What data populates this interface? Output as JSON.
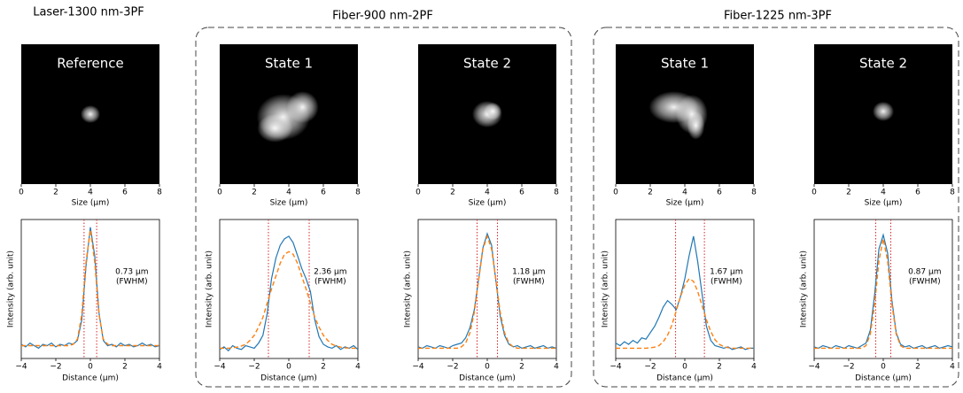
{
  "figure_titles": [
    "Laser-1300 nm-3PF",
    "Fiber-900 nm-2PF",
    "Fiber-1225 nm-3PF"
  ],
  "chart_data": [
    {
      "type": "image",
      "label": "Reference",
      "x_label": "Size (μm)",
      "xlim": [
        0,
        8
      ],
      "xticks": [
        0,
        2,
        4,
        6,
        8
      ]
    },
    {
      "type": "image",
      "label": "State 1",
      "x_label": "Size (μm)",
      "xlim": [
        0,
        8
      ],
      "xticks": [
        0,
        2,
        4,
        6,
        8
      ]
    },
    {
      "type": "image",
      "label": "State 2",
      "x_label": "Size (μm)",
      "xlim": [
        0,
        8
      ],
      "xticks": [
        0,
        2,
        4,
        6,
        8
      ]
    },
    {
      "type": "image",
      "label": "State 1",
      "x_label": "Size (μm)",
      "xlim": [
        0,
        8
      ],
      "xticks": [
        0,
        2,
        4,
        6,
        8
      ]
    },
    {
      "type": "image",
      "label": "State 2",
      "x_label": "Size (μm)",
      "xlim": [
        0,
        8
      ],
      "xticks": [
        0,
        2,
        4,
        6,
        8
      ]
    },
    {
      "type": "line",
      "x_label": "Distance (μm)",
      "y_label": "Intensity (arb. unit)",
      "annotation": [
        "0.73 μm",
        "(FWHM)"
      ],
      "xlim": [
        -4,
        4
      ],
      "xticks": [
        {
          "value": -4,
          "label": "−4"
        },
        {
          "value": -2,
          "label": "−2"
        },
        0,
        2,
        4
      ],
      "ylim": [
        0,
        1.08
      ],
      "x": [
        -4,
        -3.75,
        -3.5,
        -3.25,
        -3,
        -2.75,
        -2.5,
        -2.25,
        -2,
        -1.75,
        -1.5,
        -1.25,
        -1,
        -0.75,
        -0.5,
        -0.25,
        0,
        0.25,
        0.5,
        0.75,
        1,
        1.25,
        1.5,
        1.75,
        2,
        2.25,
        2.5,
        2.75,
        3,
        3.25,
        3.5,
        3.75,
        4
      ],
      "series": [
        {
          "color": "#1f77b4",
          "style": "solid",
          "values": [
            0.11,
            0.09,
            0.12,
            0.1,
            0.08,
            0.11,
            0.1,
            0.12,
            0.09,
            0.11,
            0.1,
            0.12,
            0.11,
            0.14,
            0.3,
            0.72,
            1.02,
            0.8,
            0.35,
            0.14,
            0.1,
            0.11,
            0.09,
            0.12,
            0.1,
            0.11,
            0.09,
            0.1,
            0.12,
            0.1,
            0.11,
            0.09,
            0.1
          ]
        },
        {
          "color": "#ff7f0e",
          "style": "dashed",
          "values": [
            0.1,
            0.1,
            0.1,
            0.1,
            0.1,
            0.1,
            0.1,
            0.1,
            0.1,
            0.1,
            0.1,
            0.1,
            0.11,
            0.15,
            0.34,
            0.75,
            1.0,
            0.75,
            0.34,
            0.15,
            0.11,
            0.1,
            0.1,
            0.1,
            0.1,
            0.1,
            0.1,
            0.1,
            0.1,
            0.1,
            0.1,
            0.1,
            0.1
          ]
        }
      ],
      "vlines": [
        -0.365,
        0.365
      ],
      "vline_color": "#d62728"
    },
    {
      "type": "line",
      "x_label": "Distance (μm)",
      "y_label": "Intensity (arb. unit)",
      "annotation": [
        "2.36 μm",
        "(FWHM)"
      ],
      "xlim": [
        -4,
        4
      ],
      "xticks": [
        {
          "value": -4,
          "label": "−4"
        },
        {
          "value": -2,
          "label": "−2"
        },
        0,
        2,
        4
      ],
      "ylim": [
        0,
        1.08
      ],
      "x": [
        -4,
        -3.75,
        -3.5,
        -3.25,
        -3,
        -2.75,
        -2.5,
        -2.25,
        -2,
        -1.75,
        -1.5,
        -1.25,
        -1,
        -0.75,
        -0.5,
        -0.25,
        0,
        0.25,
        0.5,
        0.75,
        1,
        1.25,
        1.5,
        1.75,
        2,
        2.25,
        2.5,
        2.75,
        3,
        3.25,
        3.5,
        3.75,
        4
      ],
      "series": [
        {
          "color": "#1f77b4",
          "style": "solid",
          "values": [
            0.07,
            0.09,
            0.06,
            0.1,
            0.08,
            0.07,
            0.1,
            0.09,
            0.08,
            0.12,
            0.18,
            0.35,
            0.62,
            0.78,
            0.88,
            0.93,
            0.95,
            0.9,
            0.8,
            0.7,
            0.62,
            0.52,
            0.3,
            0.17,
            0.11,
            0.09,
            0.08,
            0.1,
            0.07,
            0.09,
            0.08,
            0.1,
            0.07
          ]
        },
        {
          "color": "#ff7f0e",
          "style": "dashed",
          "values": [
            0.08,
            0.08,
            0.08,
            0.083,
            0.088,
            0.097,
            0.11,
            0.14,
            0.18,
            0.245,
            0.32,
            0.43,
            0.54,
            0.64,
            0.74,
            0.81,
            0.83,
            0.81,
            0.74,
            0.64,
            0.54,
            0.43,
            0.32,
            0.245,
            0.18,
            0.14,
            0.11,
            0.097,
            0.088,
            0.083,
            0.08,
            0.08,
            0.08
          ]
        }
      ],
      "vlines": [
        -1.18,
        1.18
      ],
      "vline_color": "#d62728"
    },
    {
      "type": "line",
      "x_label": "Distance (μm)",
      "y_label": "Intensity (arb. unit)",
      "annotation": [
        "1.18 μm",
        "(FWHM)"
      ],
      "xlim": [
        -4,
        4
      ],
      "xticks": [
        {
          "value": -4,
          "label": "−4"
        },
        {
          "value": -2,
          "label": "−2"
        },
        0,
        2,
        4
      ],
      "ylim": [
        0,
        1.08
      ],
      "x": [
        -4,
        -3.75,
        -3.5,
        -3.25,
        -3,
        -2.75,
        -2.5,
        -2.25,
        -2,
        -1.75,
        -1.5,
        -1.25,
        -1,
        -0.75,
        -0.5,
        -0.25,
        0,
        0.25,
        0.5,
        0.75,
        1,
        1.25,
        1.5,
        1.75,
        2,
        2.25,
        2.5,
        2.75,
        3,
        3.25,
        3.5,
        3.75,
        4
      ],
      "series": [
        {
          "color": "#1f77b4",
          "style": "solid",
          "values": [
            0.09,
            0.08,
            0.1,
            0.09,
            0.08,
            0.1,
            0.09,
            0.08,
            0.1,
            0.11,
            0.12,
            0.16,
            0.24,
            0.38,
            0.62,
            0.86,
            0.97,
            0.88,
            0.6,
            0.33,
            0.18,
            0.11,
            0.09,
            0.1,
            0.08,
            0.09,
            0.1,
            0.08,
            0.09,
            0.1,
            0.08,
            0.09,
            0.08
          ]
        },
        {
          "color": "#ff7f0e",
          "style": "dashed",
          "values": [
            0.08,
            0.08,
            0.08,
            0.08,
            0.08,
            0.08,
            0.08,
            0.08,
            0.08,
            0.08,
            0.09,
            0.12,
            0.2,
            0.36,
            0.61,
            0.85,
            0.95,
            0.85,
            0.61,
            0.36,
            0.2,
            0.12,
            0.09,
            0.08,
            0.08,
            0.08,
            0.08,
            0.08,
            0.08,
            0.08,
            0.08,
            0.08,
            0.08
          ]
        }
      ],
      "vlines": [
        -0.59,
        0.59
      ],
      "vline_color": "#d62728"
    },
    {
      "type": "line",
      "x_label": "Distance (μm)",
      "y_label": "Intensity (arb. unit)",
      "annotation": [
        "1.67 μm",
        "(FWHM)"
      ],
      "xlim": [
        -4,
        4
      ],
      "xticks": [
        {
          "value": -4,
          "label": "−4"
        },
        {
          "value": -2,
          "label": "−2"
        },
        0,
        2,
        4
      ],
      "ylim": [
        0,
        1.08
      ],
      "x": [
        -4,
        -3.75,
        -3.5,
        -3.25,
        -3,
        -2.75,
        -2.5,
        -2.25,
        -2,
        -1.75,
        -1.5,
        -1.25,
        -1,
        -0.75,
        -0.5,
        -0.25,
        0,
        0.25,
        0.5,
        0.75,
        1,
        1.25,
        1.5,
        1.75,
        2,
        2.25,
        2.5,
        2.75,
        3,
        3.25,
        3.5,
        3.75,
        4
      ],
      "series": [
        {
          "color": "#1f77b4",
          "style": "solid",
          "values": [
            0.12,
            0.1,
            0.13,
            0.11,
            0.14,
            0.12,
            0.16,
            0.15,
            0.2,
            0.25,
            0.32,
            0.4,
            0.45,
            0.42,
            0.38,
            0.48,
            0.62,
            0.8,
            0.95,
            0.75,
            0.5,
            0.25,
            0.14,
            0.1,
            0.09,
            0.08,
            0.09,
            0.07,
            0.08,
            0.09,
            0.07,
            0.08,
            0.08
          ]
        },
        {
          "color": "#ff7f0e",
          "style": "dashed",
          "values": [
            0.08,
            0.08,
            0.08,
            0.08,
            0.08,
            0.08,
            0.08,
            0.08,
            0.083,
            0.088,
            0.1,
            0.13,
            0.18,
            0.26,
            0.37,
            0.48,
            0.57,
            0.62,
            0.6,
            0.52,
            0.41,
            0.3,
            0.21,
            0.145,
            0.11,
            0.092,
            0.084,
            0.08,
            0.08,
            0.08,
            0.08,
            0.08,
            0.08
          ]
        }
      ],
      "vlines": [
        -0.535,
        1.135
      ],
      "vline_color": "#d62728"
    },
    {
      "type": "line",
      "x_label": "Distance (μm)",
      "y_label": "Intensity (arb. unit)",
      "annotation": [
        "0.87 μm",
        "(FWHM)"
      ],
      "xlim": [
        -4,
        4
      ],
      "xticks": [
        {
          "value": -4,
          "label": "−4"
        },
        {
          "value": -2,
          "label": "−2"
        },
        0,
        2,
        4
      ],
      "ylim": [
        0,
        1.08
      ],
      "x": [
        -4,
        -3.75,
        -3.5,
        -3.25,
        -3,
        -2.75,
        -2.5,
        -2.25,
        -2,
        -1.75,
        -1.5,
        -1.25,
        -1,
        -0.75,
        -0.5,
        -0.25,
        0,
        0.25,
        0.5,
        0.75,
        1,
        1.25,
        1.5,
        1.75,
        2,
        2.25,
        2.5,
        2.75,
        3,
        3.25,
        3.5,
        3.75,
        4
      ],
      "series": [
        {
          "color": "#1f77b4",
          "style": "solid",
          "values": [
            0.09,
            0.08,
            0.1,
            0.09,
            0.08,
            0.1,
            0.09,
            0.08,
            0.1,
            0.09,
            0.08,
            0.1,
            0.12,
            0.22,
            0.5,
            0.85,
            0.96,
            0.82,
            0.45,
            0.2,
            0.11,
            0.09,
            0.1,
            0.08,
            0.09,
            0.1,
            0.08,
            0.09,
            0.1,
            0.08,
            0.09,
            0.1,
            0.09
          ]
        },
        {
          "color": "#ff7f0e",
          "style": "dashed",
          "values": [
            0.08,
            0.08,
            0.08,
            0.08,
            0.08,
            0.08,
            0.08,
            0.08,
            0.08,
            0.08,
            0.08,
            0.08,
            0.1,
            0.19,
            0.42,
            0.76,
            0.93,
            0.76,
            0.42,
            0.19,
            0.1,
            0.08,
            0.08,
            0.08,
            0.08,
            0.08,
            0.08,
            0.08,
            0.08,
            0.08,
            0.08,
            0.08,
            0.08
          ]
        }
      ],
      "vlines": [
        -0.435,
        0.435
      ],
      "vline_color": "#d62728"
    }
  ]
}
